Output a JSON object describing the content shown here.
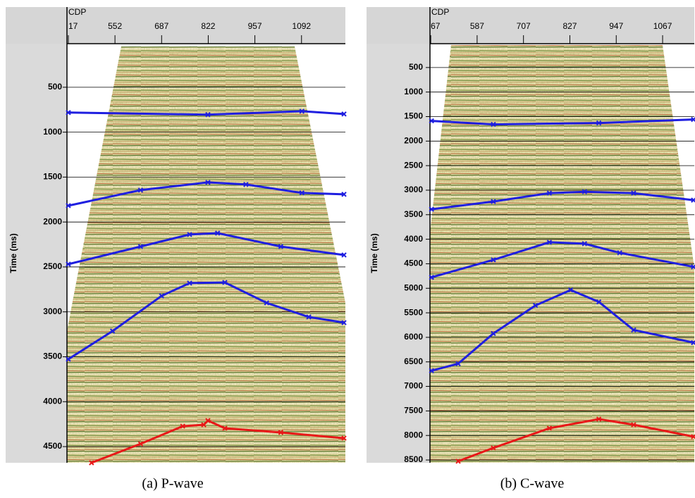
{
  "chart_data": [
    {
      "type": "line",
      "caption": "(a) P-wave",
      "x_label": "CDP",
      "y_label": "Time (ms)",
      "xlim": [
        413,
        1219
      ],
      "xticks": [
        {
          "value": 417,
          "label": "17"
        },
        552,
        687,
        822,
        957,
        1092
      ],
      "ylim": [
        15,
        4680
      ],
      "yticks": [
        500,
        1000,
        1500,
        2000,
        2500,
        3000,
        3500,
        4000,
        4500
      ],
      "y_inverted": true,
      "grid": true,
      "series": [
        {
          "color": "#1f1fe0",
          "x": [
            417,
            821,
            1093,
            1215
          ],
          "values": [
            782,
            805,
            767,
            798
          ]
        },
        {
          "color": "#1f1fe0",
          "x": [
            417,
            626,
            821,
            931,
            1093,
            1215
          ],
          "values": [
            1818,
            1645,
            1559,
            1582,
            1676,
            1692
          ]
        },
        {
          "color": "#1f1fe0",
          "x": [
            417,
            626,
            768,
            849,
            1032,
            1215
          ],
          "values": [
            2469,
            2273,
            2139,
            2124,
            2273,
            2367
          ]
        },
        {
          "color": "#1f1fe0",
          "x": [
            417,
            545,
            687,
            768,
            870,
            991,
            1113,
            1215
          ],
          "values": [
            3527,
            3214,
            2822,
            2680,
            2673,
            2900,
            3057,
            3120
          ]
        },
        {
          "color": "#e81818",
          "x": [
            484,
            626,
            748,
            809,
            821,
            870,
            1032,
            1215
          ],
          "values": [
            4680,
            4469,
            4273,
            4257,
            4210,
            4296,
            4343,
            4406
          ]
        }
      ]
    },
    {
      "type": "line",
      "caption": "(b) C-wave",
      "x_label": "CDP",
      "y_label": "Time (ms)",
      "xlim": [
        465,
        1149
      ],
      "xticks": [
        {
          "value": 467,
          "label": "67"
        },
        587,
        707,
        827,
        947,
        1067
      ],
      "ylim": [
        14,
        8557
      ],
      "yticks": [
        500,
        1000,
        1500,
        2000,
        2500,
        3000,
        3500,
        4000,
        4500,
        5000,
        5500,
        6000,
        6500,
        7000,
        7500,
        8000,
        8500
      ],
      "y_inverted": true,
      "grid": true,
      "series": [
        {
          "color": "#1f1fe0",
          "x": [
            469,
            629,
            902,
            1147
          ],
          "values": [
            1587,
            1659,
            1630,
            1559
          ]
        },
        {
          "color": "#1f1fe0",
          "x": [
            469,
            629,
            774,
            865,
            992,
            1147
          ],
          "values": [
            3390,
            3232,
            3061,
            3032,
            3061,
            3203
          ]
        },
        {
          "color": "#1f1fe0",
          "x": [
            469,
            629,
            774,
            865,
            956,
            1147
          ],
          "values": [
            4777,
            4420,
            4062,
            4091,
            4277,
            4563
          ]
        },
        {
          "color": "#1f1fe0",
          "x": [
            469,
            538,
            629,
            738,
            829,
            902,
            992,
            1147
          ],
          "values": [
            6680,
            6537,
            5922,
            5350,
            5035,
            5278,
            5850,
            6108
          ]
        },
        {
          "color": "#e81818",
          "x": [
            538,
            629,
            774,
            902,
            992,
            1147
          ],
          "values": [
            8526,
            8254,
            7853,
            7667,
            7782,
            8025
          ]
        }
      ]
    }
  ]
}
